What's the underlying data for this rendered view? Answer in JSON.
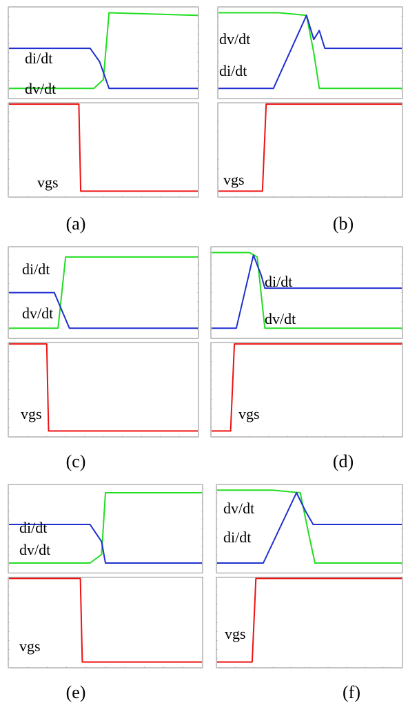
{
  "colors": {
    "green": "#22dd22",
    "blue": "#1f2fd0",
    "red": "#ee1111",
    "frame": "#888888"
  },
  "panels": [
    {
      "id": "a",
      "caption": "(a)",
      "upper_labels": [
        "di/dt",
        "dv/dt"
      ],
      "lower_label": "vgs"
    },
    {
      "id": "b",
      "caption": "(b)",
      "upper_labels": [
        "dv/dt",
        "di/dt"
      ],
      "lower_label": "vgs"
    },
    {
      "id": "c",
      "caption": "(c)",
      "upper_labels": [
        "di/dt",
        "dv/dt"
      ],
      "lower_label": "vgs"
    },
    {
      "id": "d",
      "caption": "(d)",
      "upper_labels": [
        "di/dt",
        "dv/dt"
      ],
      "lower_label": "vgs"
    },
    {
      "id": "e",
      "caption": "(e)",
      "upper_labels": [
        "di/dt",
        "dv/dt"
      ],
      "lower_label": "vgs"
    },
    {
      "id": "f",
      "caption": "(f)",
      "upper_labels": [
        "dv/dt",
        "di/dt"
      ],
      "lower_label": "vgs"
    }
  ],
  "chart_data": [
    {
      "type": "line",
      "panel": "a",
      "x": [
        0,
        1
      ],
      "series": [
        {
          "name": "dv/dt",
          "color": "green",
          "points": [
            [
              0,
              0.1
            ],
            [
              0.45,
              0.1
            ],
            [
              0.5,
              0.2
            ],
            [
              0.53,
              0.95
            ],
            [
              1,
              0.92
            ]
          ]
        },
        {
          "name": "di/dt",
          "color": "blue",
          "points": [
            [
              0,
              0.55
            ],
            [
              0.43,
              0.55
            ],
            [
              0.48,
              0.4
            ],
            [
              0.53,
              0.1
            ],
            [
              1,
              0.1
            ]
          ]
        },
        {
          "name": "vgs",
          "color": "red",
          "points": [
            [
              0,
              1
            ],
            [
              0.37,
              1
            ],
            [
              0.38,
              0.05
            ],
            [
              1,
              0.05
            ]
          ]
        }
      ]
    },
    {
      "type": "line",
      "panel": "b",
      "x": [
        0,
        1
      ],
      "series": [
        {
          "name": "dv/dt",
          "color": "green",
          "points": [
            [
              0,
              0.95
            ],
            [
              0.33,
              0.95
            ],
            [
              0.48,
              0.92
            ],
            [
              0.52,
              0.5
            ],
            [
              0.55,
              0.1
            ],
            [
              0.6,
              0.1
            ],
            [
              1,
              0.1
            ]
          ]
        },
        {
          "name": "di/dt",
          "color": "blue",
          "points": [
            [
              0,
              0.1
            ],
            [
              0.3,
              0.1
            ],
            [
              0.48,
              0.92
            ],
            [
              0.52,
              0.65
            ],
            [
              0.55,
              0.75
            ],
            [
              0.58,
              0.55
            ],
            [
              1,
              0.55
            ]
          ]
        },
        {
          "name": "vgs",
          "color": "red",
          "points": [
            [
              0,
              0.05
            ],
            [
              0.24,
              0.05
            ],
            [
              0.26,
              1
            ],
            [
              1,
              1
            ]
          ]
        }
      ]
    },
    {
      "type": "line",
      "panel": "c",
      "x": [
        0,
        1
      ],
      "series": [
        {
          "name": "dv/dt",
          "color": "green",
          "points": [
            [
              0,
              0.1
            ],
            [
              0.26,
              0.1
            ],
            [
              0.3,
              0.9
            ],
            [
              1,
              0.9
            ]
          ]
        },
        {
          "name": "di/dt",
          "color": "blue",
          "points": [
            [
              0,
              0.5
            ],
            [
              0.24,
              0.5
            ],
            [
              0.32,
              0.1
            ],
            [
              1,
              0.1
            ]
          ]
        },
        {
          "name": "vgs",
          "color": "red",
          "points": [
            [
              0,
              1
            ],
            [
              0.2,
              1
            ],
            [
              0.21,
              0.05
            ],
            [
              1,
              0.05
            ]
          ]
        }
      ]
    },
    {
      "type": "line",
      "panel": "d",
      "x": [
        0,
        1
      ],
      "series": [
        {
          "name": "dv/dt",
          "color": "green",
          "points": [
            [
              0,
              0.95
            ],
            [
              0.2,
              0.95
            ],
            [
              0.24,
              0.9
            ],
            [
              0.28,
              0.1
            ],
            [
              1,
              0.1
            ]
          ]
        },
        {
          "name": "di/dt",
          "color": "blue",
          "points": [
            [
              0,
              0.1
            ],
            [
              0.13,
              0.1
            ],
            [
              0.22,
              0.92
            ],
            [
              0.26,
              0.7
            ],
            [
              0.28,
              0.55
            ],
            [
              1,
              0.55
            ]
          ]
        },
        {
          "name": "vgs",
          "color": "red",
          "points": [
            [
              0,
              0.05
            ],
            [
              0.1,
              0.05
            ],
            [
              0.12,
              1
            ],
            [
              1,
              1
            ]
          ]
        }
      ]
    },
    {
      "type": "line",
      "panel": "e",
      "x": [
        0,
        1
      ],
      "series": [
        {
          "name": "dv/dt",
          "color": "green",
          "points": [
            [
              0,
              0.1
            ],
            [
              0.42,
              0.1
            ],
            [
              0.48,
              0.2
            ],
            [
              0.5,
              0.92
            ],
            [
              1,
              0.92
            ]
          ]
        },
        {
          "name": "di/dt",
          "color": "blue",
          "points": [
            [
              0,
              0.55
            ],
            [
              0.42,
              0.55
            ],
            [
              0.48,
              0.35
            ],
            [
              0.5,
              0.1
            ],
            [
              1,
              0.1
            ]
          ]
        },
        {
          "name": "vgs",
          "color": "red",
          "points": [
            [
              0,
              1
            ],
            [
              0.37,
              1
            ],
            [
              0.38,
              0.05
            ],
            [
              1,
              0.05
            ]
          ]
        }
      ]
    },
    {
      "type": "line",
      "panel": "f",
      "x": [
        0,
        1
      ],
      "series": [
        {
          "name": "dv/dt",
          "color": "green",
          "points": [
            [
              0,
              0.95
            ],
            [
              0.3,
              0.95
            ],
            [
              0.45,
              0.92
            ],
            [
              0.5,
              0.4
            ],
            [
              0.53,
              0.1
            ],
            [
              1,
              0.1
            ]
          ]
        },
        {
          "name": "di/dt",
          "color": "blue",
          "points": [
            [
              0,
              0.1
            ],
            [
              0.25,
              0.1
            ],
            [
              0.43,
              0.92
            ],
            [
              0.48,
              0.7
            ],
            [
              0.52,
              0.55
            ],
            [
              1,
              0.55
            ]
          ]
        },
        {
          "name": "vgs",
          "color": "red",
          "points": [
            [
              0,
              0.05
            ],
            [
              0.19,
              0.05
            ],
            [
              0.21,
              1
            ],
            [
              1,
              1
            ]
          ]
        }
      ]
    }
  ]
}
